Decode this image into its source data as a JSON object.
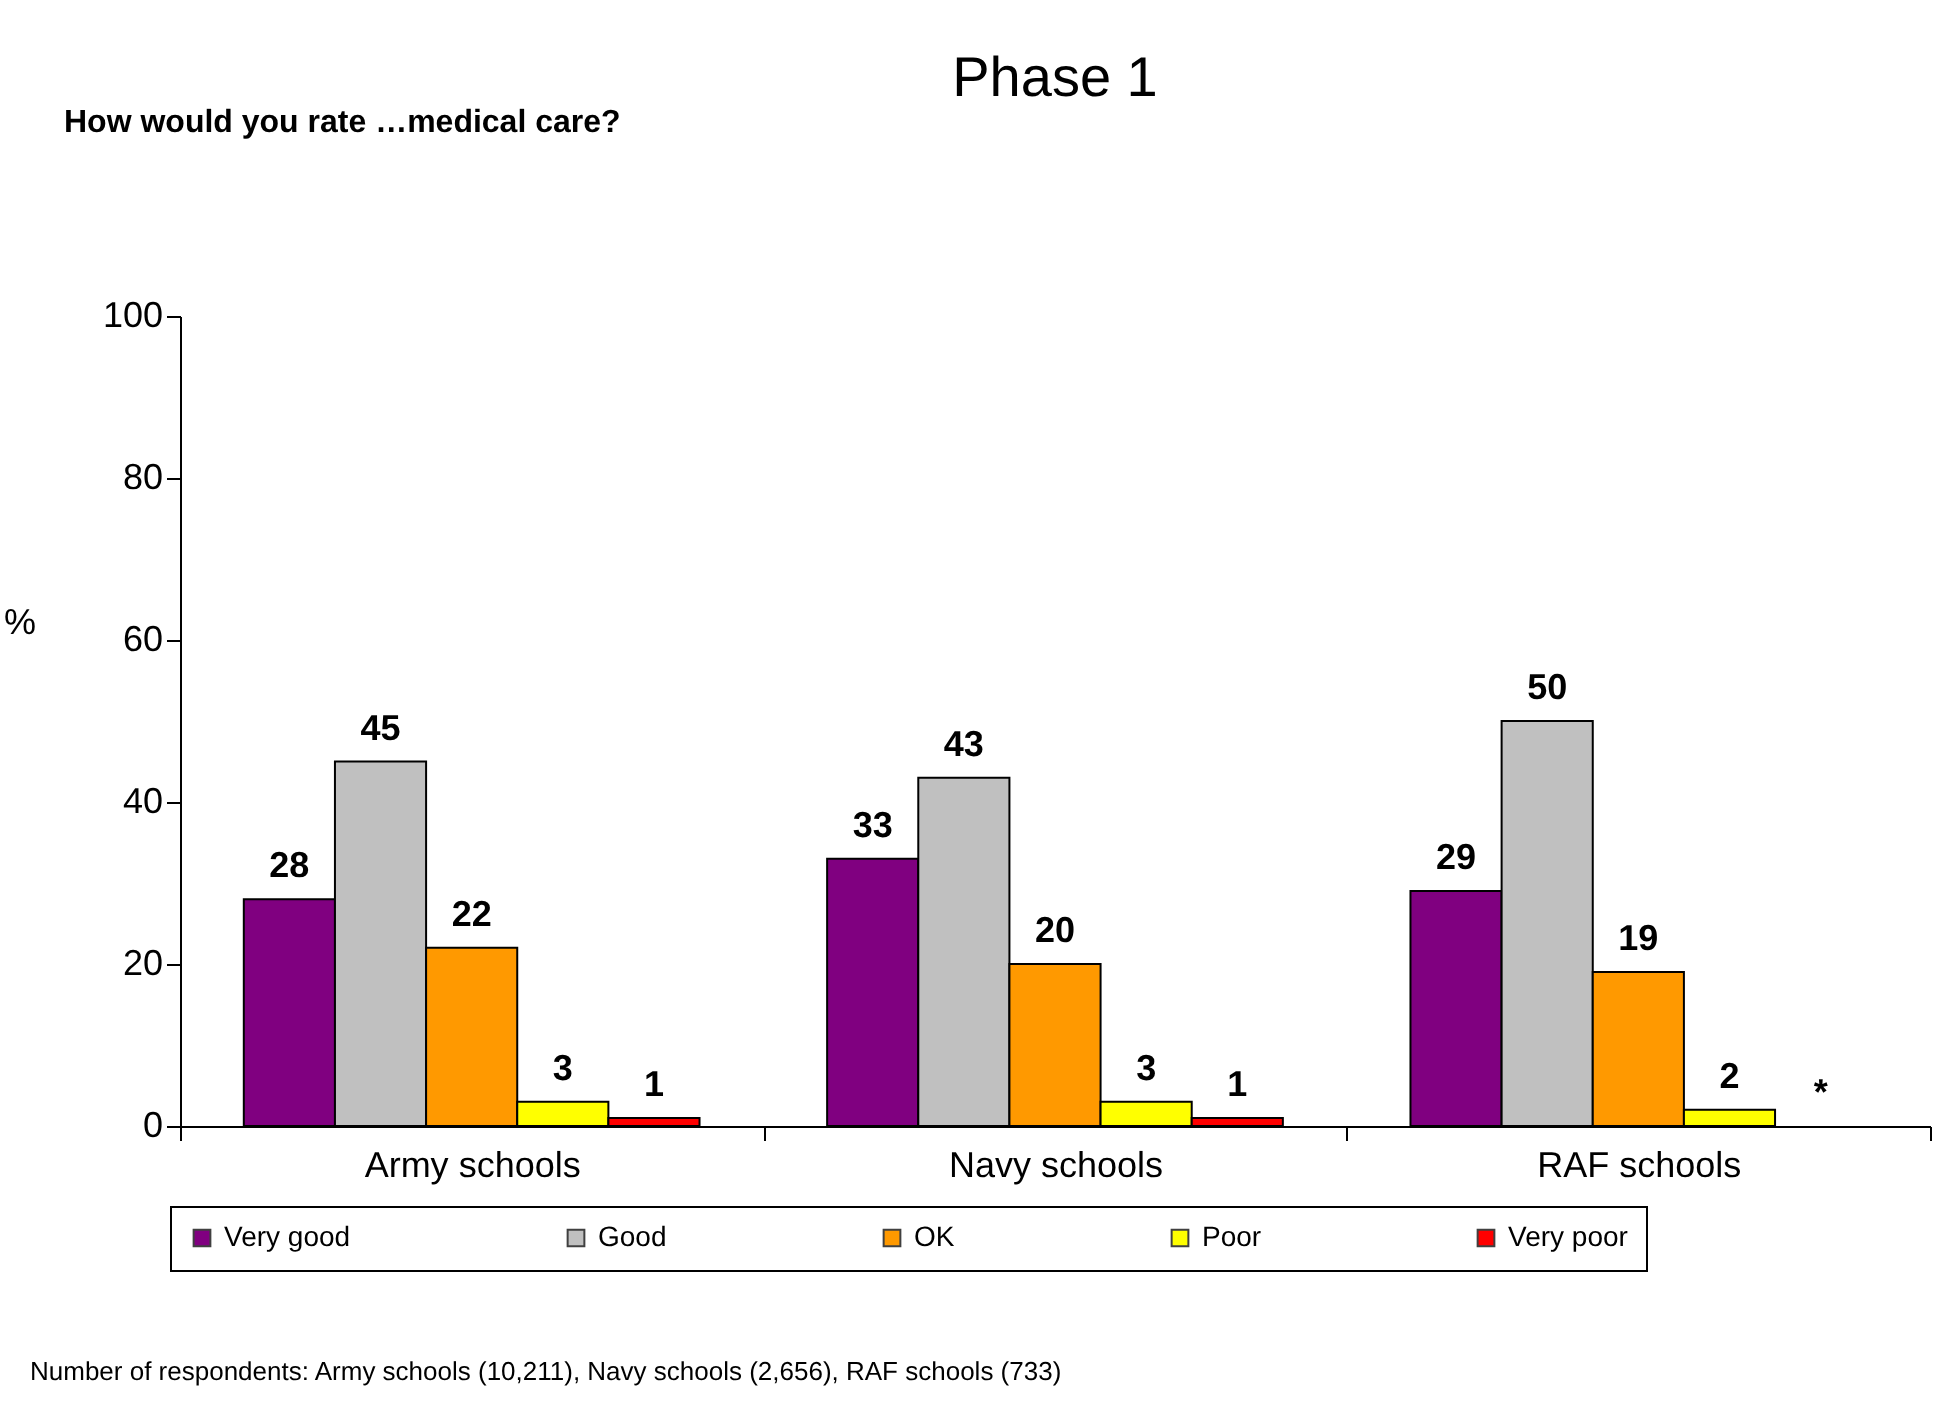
{
  "chart_data": {
    "type": "bar",
    "title": "Phase 1",
    "subtitle": "How would you rate …medical care?",
    "ylabel": "%",
    "annotations": [
      "Number of respondents: Army schools (10,211), Navy schools (2,656), RAF schools (733)"
    ],
    "categories": [
      "Army schools",
      "Navy schools",
      "RAF schools"
    ],
    "series": [
      {
        "name": "Very good",
        "color": "#800080",
        "values": [
          28,
          33,
          29
        ],
        "value_labels": [
          "28",
          "33",
          "29"
        ]
      },
      {
        "name": "Good",
        "color": "#c0c0c0",
        "values": [
          45,
          43,
          50
        ],
        "value_labels": [
          "45",
          "43",
          "50"
        ]
      },
      {
        "name": "OK",
        "color": "#ff9900",
        "values": [
          22,
          20,
          19
        ],
        "value_labels": [
          "22",
          "20",
          "19"
        ]
      },
      {
        "name": "Poor",
        "color": "#ffff00",
        "values": [
          3,
          3,
          2
        ],
        "value_labels": [
          "3",
          "3",
          "2"
        ]
      },
      {
        "name": "Very poor",
        "color": "#ff0000",
        "values": [
          1,
          1,
          null
        ],
        "value_labels": [
          "1",
          "1",
          "*"
        ]
      }
    ],
    "ylim": [
      0,
      100
    ],
    "yticks": [
      0,
      20,
      40,
      60,
      80,
      100
    ],
    "grid": false,
    "legend": "bottom"
  }
}
